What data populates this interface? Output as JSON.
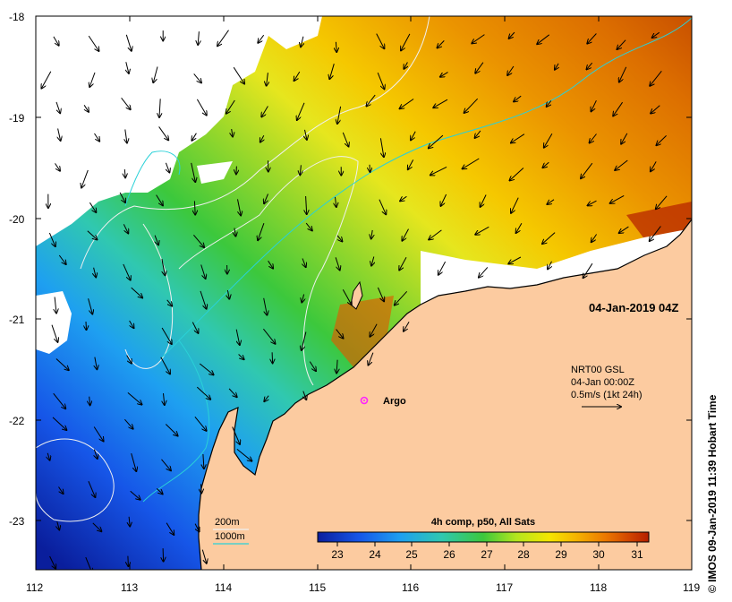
{
  "map": {
    "datetime_label": "04-Jan-2019 04Z",
    "product_label": "4h comp, p50, All Sats",
    "argo_label": "Argo",
    "credit": "© IMOS 09-Jan-2019 11:39 Hobart Time",
    "current_legend": {
      "line1": "NRT00 GSL",
      "line2": "04-Jan 00:00Z",
      "line3": "0.5m/s (1kt 24h)"
    },
    "depth_legend": [
      {
        "label": "200m",
        "color": "#f0f0f0"
      },
      {
        "label": "1000m",
        "color": "#2ad1d8"
      }
    ],
    "lon_ticks": [
      "112",
      "113",
      "114",
      "115",
      "116",
      "117",
      "118",
      "119"
    ],
    "lat_ticks": [
      "-18",
      "-19",
      "-20",
      "-21",
      "-22",
      "-23"
    ],
    "colorbar_ticks": [
      "23",
      "24",
      "25",
      "26",
      "27",
      "28",
      "29",
      "30",
      "31"
    ],
    "colorbar_colors": [
      "#0a1e9c",
      "#1656e8",
      "#1ea0f0",
      "#30c8b0",
      "#3cc83c",
      "#b4e61e",
      "#f5e600",
      "#f5b400",
      "#eb7800",
      "#d24600",
      "#b41e00"
    ],
    "colors": {
      "land": "#fccba0",
      "cloud": "#ffffff",
      "argo": "#ff22ff",
      "contour_200m": "#f0f0f0",
      "contour_1000m": "#2ad1d8"
    }
  }
}
